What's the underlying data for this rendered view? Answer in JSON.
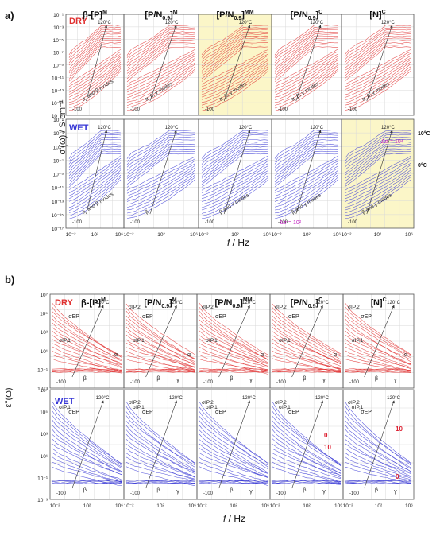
{
  "figure": {
    "panels": [
      {
        "id": "a",
        "label": "a)",
        "ylabel": "σ'(ω) / S·cm⁻¹",
        "xlabel_f": "f",
        "xlabel_unit": " / Hz",
        "row_labels": [
          "DRY",
          "WET"
        ],
        "column_titles": [
          {
            "main": "β-[P]",
            "sup": "M"
          },
          {
            "main": "[P/N",
            "sub": "0.9",
            "close": "]",
            "sup": "M"
          },
          {
            "main": "[P/N",
            "sub": "0.9",
            "close": "]",
            "sup": "MM"
          },
          {
            "main": "[P/N",
            "sub": "0.9",
            "close": "]",
            "sup": "C"
          },
          {
            "main": "[N]",
            "sup": "C"
          }
        ],
        "y_ticks": [
          "10⁻¹",
          "10⁻³",
          "10⁻⁵",
          "10⁻⁷",
          "10⁻⁹",
          "10⁻¹¹",
          "10⁻¹³",
          "10⁻¹⁵",
          "10⁻¹⁷"
        ],
        "x_ticks": [
          "10⁻²",
          "10²",
          "10⁶"
        ],
        "annotations_dry": [
          "α, and β modes",
          "α, β, γ modes",
          "α, β, γ modes",
          "α, β, γ modes",
          "α, β, γ modes"
        ],
        "annotations_wet": [
          "α, and β modes",
          "β",
          "β and γ modes",
          "β and γ modes",
          "β and γ modes"
        ],
        "temperature_labels": [
          "90°C",
          "120°C",
          "-100"
        ],
        "wet_extras": {
          "delta_sigma_3": "Δσ = 10²",
          "delta_sigma_5": "Δσ = 10⁴",
          "label_10c": "10°C",
          "label_0c": "0°C"
        }
      },
      {
        "id": "b",
        "label": "b)",
        "ylabel": "ε''(ω)",
        "xlabel_f": "f",
        "xlabel_unit": " / Hz",
        "row_labels": [
          "DRY",
          "WET"
        ],
        "y_ticks": [
          "10⁷",
          "10⁵",
          "10³",
          "10¹",
          "10⁻¹",
          "10⁻³"
        ],
        "x_ticks": [
          "10⁻²",
          "10²",
          "10⁶"
        ],
        "mode_labels": [
          "σEP",
          "σIP,1",
          "σIP,2",
          "σIP,3",
          "α",
          "β",
          "γ"
        ],
        "wet_extras": {
          "label_10": "10",
          "label_0": "0"
        }
      }
    ]
  },
  "chart_data": [
    {
      "type": "line",
      "title": "a)",
      "ylabel": "σ'(ω) / S·cm⁻¹",
      "xlabel": "f / Hz",
      "x_scale": "log",
      "y_scale": "log",
      "xlim": [
        0.01,
        10000000
      ],
      "ylim": [
        1e-17,
        1
      ],
      "grid": true,
      "rows": [
        "DRY",
        "WET"
      ],
      "columns": [
        "β-[P]M",
        "[P/N0.9]M",
        "[P/N0.9]MM",
        "[P/N0.9]C",
        "[N]C"
      ],
      "temperature_range_C": [
        -100,
        120
      ],
      "series_color": {
        "DRY": "#e03030",
        "WET": "#3535d5"
      }
    },
    {
      "type": "line",
      "title": "b)",
      "ylabel": "ε''(ω)",
      "xlabel": "f / Hz",
      "x_scale": "log",
      "y_scale": "log",
      "xlim": [
        0.01,
        10000000
      ],
      "ylim": [
        0.001,
        10000000
      ],
      "grid": true,
      "rows": [
        "DRY",
        "WET"
      ],
      "columns": [
        "β-[P]M",
        "[P/N0.9]M",
        "[P/N0.9]MM",
        "[P/N0.9]C",
        "[N]C"
      ],
      "temperature_range_C": [
        -100,
        120
      ],
      "series_color": {
        "DRY": "#e03030",
        "WET": "#3535d5"
      }
    }
  ],
  "colors": {
    "dry": "#e03030",
    "wet": "#3535d5",
    "highlight": "#fbf6c8",
    "magenta": "#c21fc2"
  }
}
